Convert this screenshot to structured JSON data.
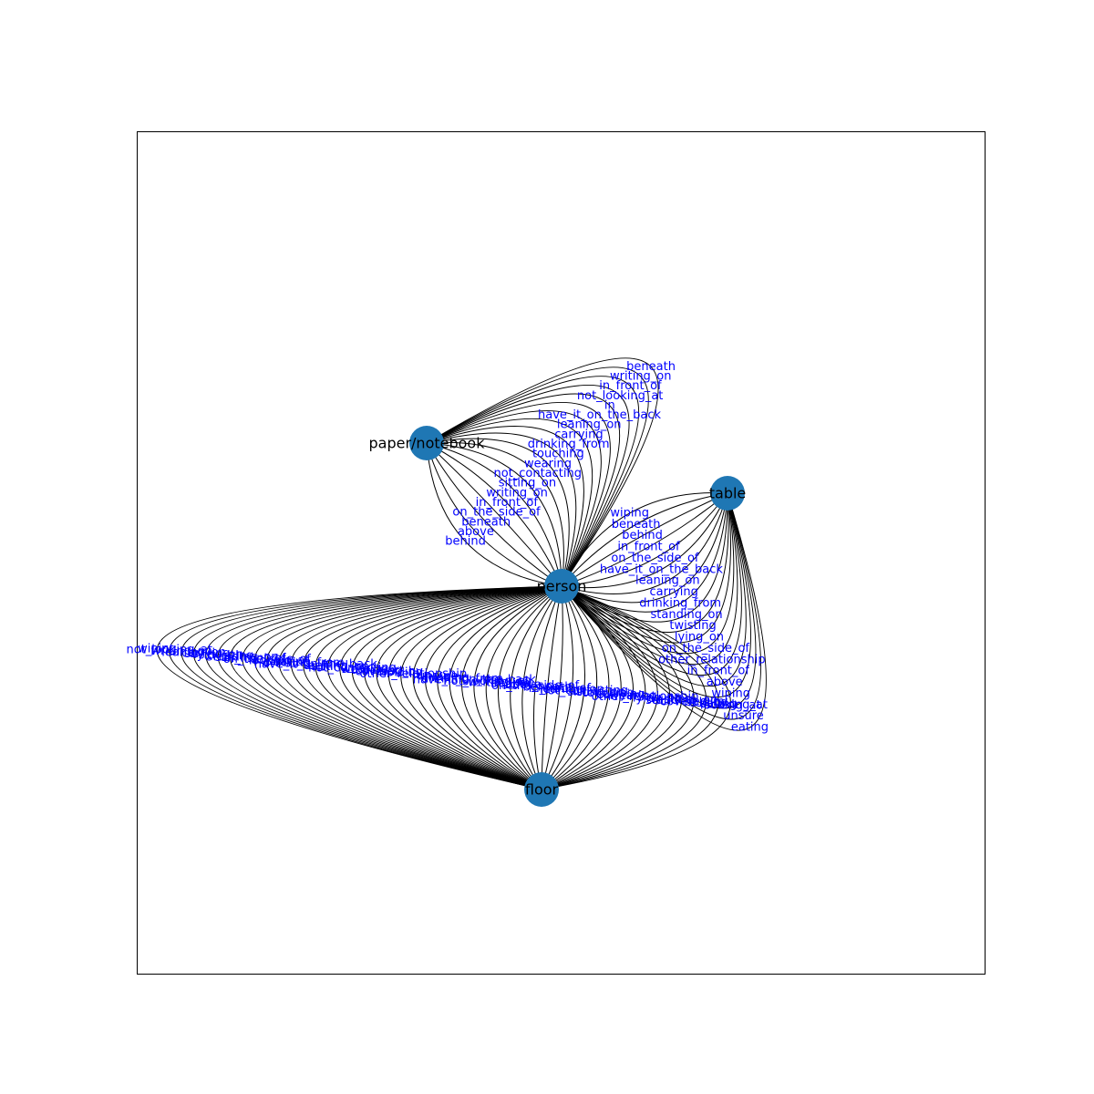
{
  "colors": {
    "node": "#1f77b4",
    "edge": "#000000",
    "edge_label": "#0000ff",
    "node_label": "#000000"
  },
  "nodes": [
    {
      "id": "person",
      "label": "person"
    },
    {
      "id": "paper",
      "label": "paper/notebook"
    },
    {
      "id": "table",
      "label": "table"
    },
    {
      "id": "floor",
      "label": "floor"
    }
  ],
  "edge_groups": [
    {
      "from": "person",
      "to": "paper",
      "labels": [
        "behind",
        "above",
        "beneath",
        "on_the_side_of",
        "in_front_of",
        "writing_on",
        "sitting_on",
        "not_contacting",
        "wearing",
        "touching",
        "drinking_from",
        "carrying",
        "leaning_on",
        "have_it_on_the_back",
        "in",
        "not_looking_at",
        "in_front_of",
        "writing_on",
        "beneath"
      ]
    },
    {
      "from": "person",
      "to": "table",
      "labels": [
        "wiping",
        "beneath",
        "behind",
        "in_front_of",
        "on_the_side_of",
        "have_it_on_the_back",
        "leaning_on",
        "carrying",
        "drinking_from",
        "standing_on",
        "twisting",
        "lying_on",
        "on_the_side_of",
        "other_relationship",
        "in_front_of",
        "above",
        "wiping",
        "looking_at",
        "unsure",
        "eating"
      ]
    },
    {
      "from": "person",
      "to": "floor",
      "labels": [
        "looking_at",
        "eating",
        "holding",
        "covered_by",
        "standing_on",
        "twisting",
        "lying_on",
        "other_relationship",
        "wearing",
        "carrying",
        "touching",
        "sitting_on",
        "not_contacting",
        "leaning_on",
        "in_front_of",
        "beneath",
        "on_the_side_of",
        "above",
        "behind",
        "writing_on",
        "not_looking_at",
        "have_it_on_the_back",
        "drinking_from",
        "wiping",
        "unsure",
        "in",
        "other_relationship",
        "holding",
        "covered_by",
        "touching",
        "wearing",
        "not_contacting",
        "sitting_on",
        "behind",
        "have_it_on_the_back",
        "drinking_from",
        "eating",
        "looking_at",
        "on_the_side_of",
        "in_front_of",
        "standing_on",
        "twisting",
        "lying_on",
        "carrying",
        "leaning_on",
        "writing_on",
        "not_looking_at",
        "wiping"
      ]
    }
  ]
}
